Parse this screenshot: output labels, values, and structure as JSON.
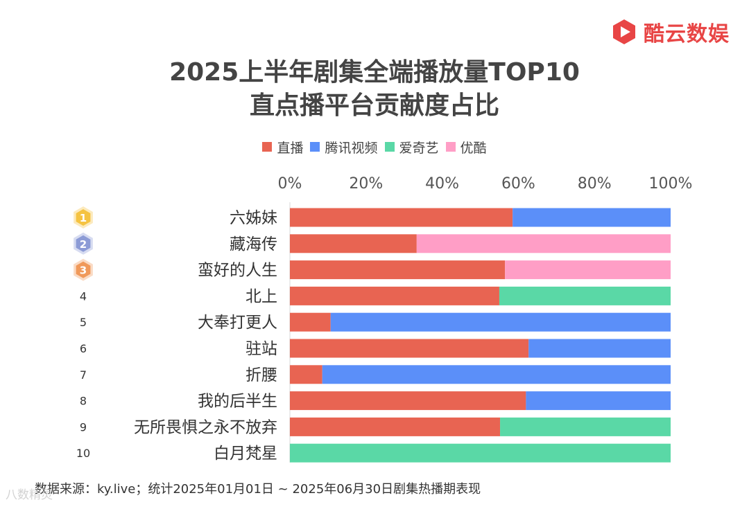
{
  "brand": {
    "name": "酷云数娱",
    "color": "#e84545"
  },
  "chart_data": {
    "type": "bar",
    "orientation": "horizontal",
    "stacked": "percent",
    "title": "2025上半年剧集全端播放量TOP10",
    "subtitle": "直点播平台贡献度占比",
    "x_ticks": [
      "0%",
      "20%",
      "40%",
      "60%",
      "80%",
      "100%"
    ],
    "xlim": [
      0,
      100
    ],
    "legend_position": "top",
    "categories": [
      "六姊妹",
      "藏海传",
      "蛮好的人生",
      "北上",
      "大奉打更人",
      "驻站",
      "折腰",
      "我的后半生",
      "无所畏惧之永不放弃",
      "白月梵星"
    ],
    "ranks": [
      "1",
      "2",
      "3",
      "4",
      "5",
      "6",
      "7",
      "8",
      "9",
      "10"
    ],
    "series": [
      {
        "name": "直播",
        "color": "#e86452",
        "values": [
          58.5,
          33.3,
          56.5,
          55.0,
          10.7,
          62.7,
          8.5,
          62.0,
          55.2,
          0
        ]
      },
      {
        "name": "腾讯视频",
        "color": "#5b8ff9",
        "values": [
          41.5,
          0,
          0,
          0,
          89.3,
          37.3,
          91.5,
          38.0,
          0,
          0
        ]
      },
      {
        "name": "爱奇艺",
        "color": "#5ad8a6",
        "values": [
          0,
          0,
          0,
          45.0,
          0,
          0,
          0,
          0,
          44.8,
          100
        ]
      },
      {
        "name": "优酷",
        "color": "#ff9ec6",
        "values": [
          0,
          66.7,
          43.5,
          0,
          0,
          0,
          0,
          0,
          0,
          0
        ]
      }
    ],
    "medal_colors": [
      "#f5c342",
      "#8c9bd6",
      "#f0995a"
    ]
  },
  "footer": {
    "source": "数据来源：ky.live；统计2025年01月01日 ~ 2025年06月30日剧集热播期表现"
  },
  "watermark": {
    "text": "八数精灵"
  }
}
